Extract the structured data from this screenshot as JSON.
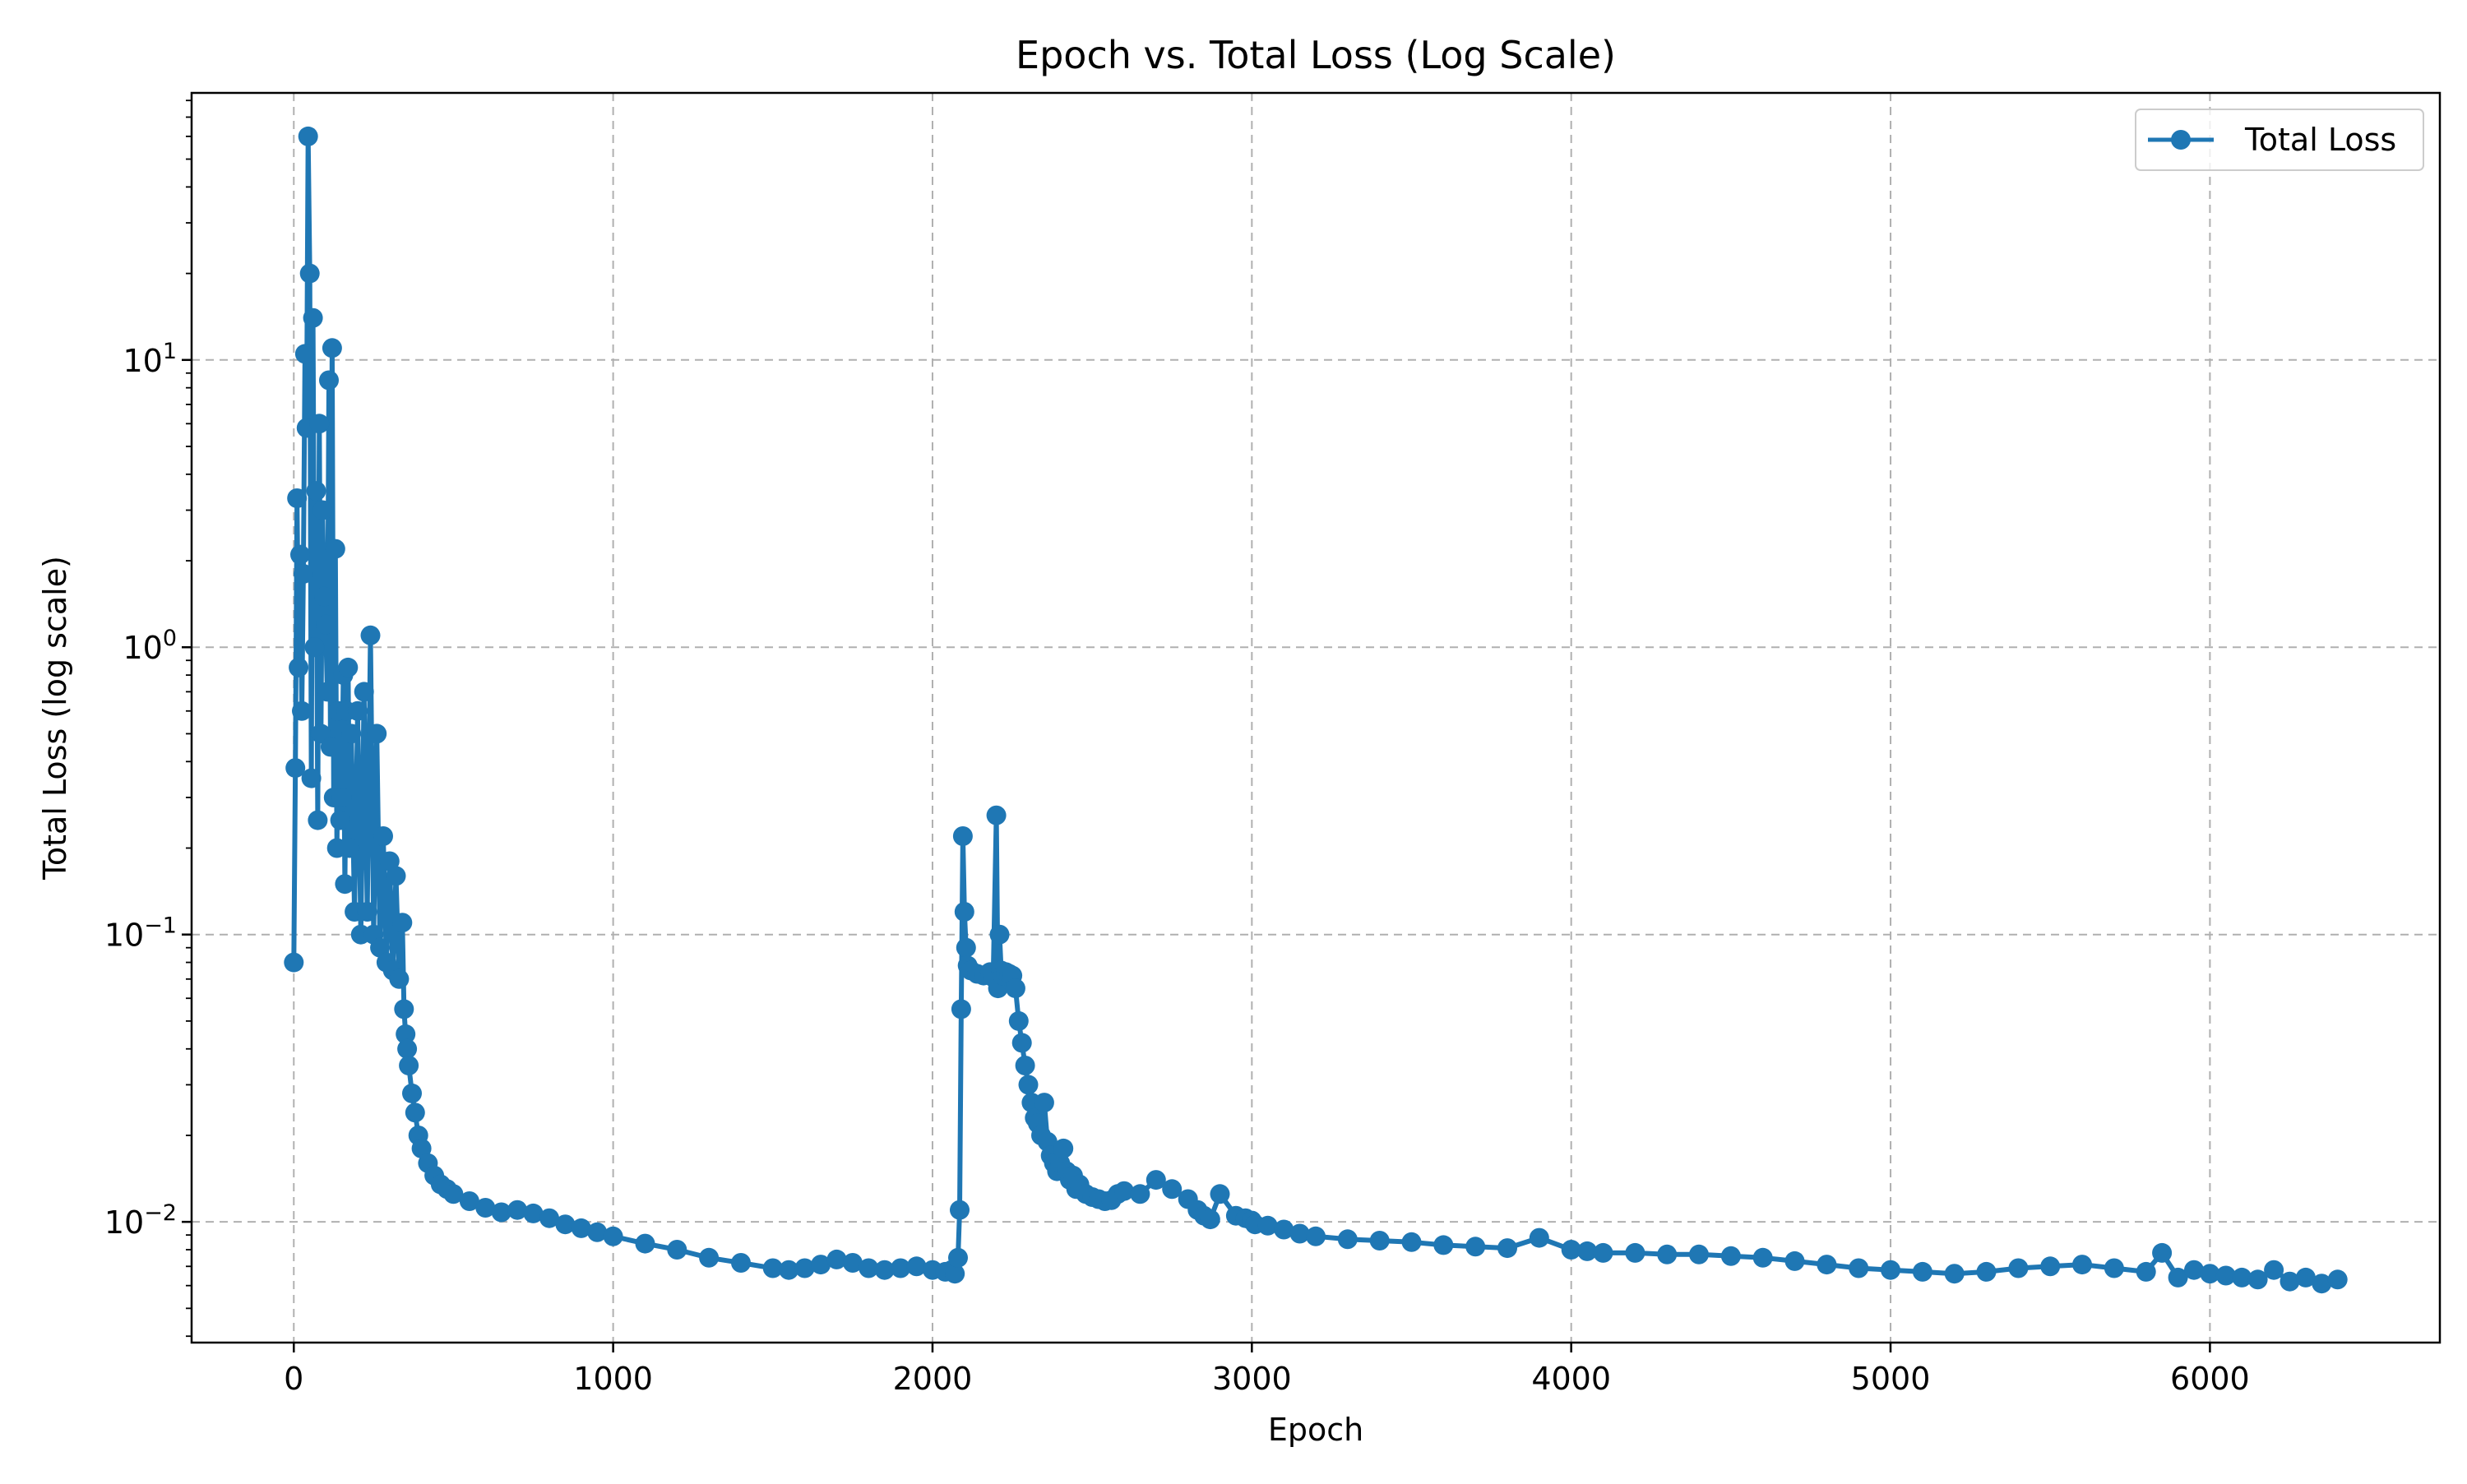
{
  "chart_data": {
    "type": "line",
    "title": "Epoch vs. Total Loss (Log Scale)",
    "xlabel": "Epoch",
    "ylabel": "Total Loss (log scale)",
    "xlim": [
      -320,
      6720
    ],
    "ylim": [
      0.0038,
      85
    ],
    "yscale": "log",
    "grid": true,
    "legend_position": "top-right",
    "x_ticks": [
      {
        "value": 0,
        "label": "0"
      },
      {
        "value": 1000,
        "label": "1000"
      },
      {
        "value": 2000,
        "label": "2000"
      },
      {
        "value": 3000,
        "label": "3000"
      },
      {
        "value": 4000,
        "label": "4000"
      },
      {
        "value": 5000,
        "label": "5000"
      },
      {
        "value": 6000,
        "label": "6000"
      }
    ],
    "y_ticks": [
      {
        "value": 0.01,
        "base": "10",
        "exp": "−2"
      },
      {
        "value": 0.1,
        "base": "10",
        "exp": "−1"
      },
      {
        "value": 1,
        "base": "10",
        "exp": "0"
      },
      {
        "value": 10,
        "base": "10",
        "exp": "1"
      }
    ],
    "series": [
      {
        "name": "Total Loss",
        "color": "#1f77b4",
        "marker": "circle",
        "x": [
          0,
          5,
          10,
          15,
          20,
          25,
          30,
          35,
          40,
          45,
          50,
          55,
          60,
          65,
          70,
          75,
          80,
          85,
          90,
          95,
          100,
          105,
          110,
          115,
          120,
          125,
          130,
          135,
          140,
          145,
          150,
          155,
          160,
          165,
          170,
          175,
          180,
          190,
          200,
          210,
          220,
          230,
          240,
          250,
          260,
          270,
          280,
          290,
          300,
          310,
          320,
          330,
          340,
          345,
          350,
          355,
          360,
          370,
          380,
          390,
          400,
          420,
          440,
          460,
          480,
          500,
          550,
          600,
          650,
          700,
          750,
          800,
          850,
          900,
          950,
          1000,
          1100,
          1200,
          1300,
          1400,
          1500,
          1550,
          1600,
          1650,
          1700,
          1750,
          1800,
          1850,
          1900,
          1950,
          2000,
          2040,
          2060,
          2070,
          2080,
          2085,
          2090,
          2095,
          2100,
          2105,
          2110,
          2120,
          2140,
          2160,
          2180,
          2190,
          2200,
          2205,
          2210,
          2215,
          2220,
          2230,
          2240,
          2250,
          2260,
          2270,
          2280,
          2290,
          2300,
          2310,
          2320,
          2330,
          2340,
          2350,
          2360,
          2370,
          2380,
          2390,
          2400,
          2410,
          2420,
          2430,
          2440,
          2450,
          2460,
          2480,
          2500,
          2520,
          2540,
          2560,
          2580,
          2600,
          2650,
          2700,
          2750,
          2800,
          2830,
          2850,
          2870,
          2900,
          2950,
          2980,
          3000,
          3010,
          3050,
          3100,
          3150,
          3200,
          3300,
          3400,
          3500,
          3600,
          3700,
          3800,
          3900,
          4000,
          4050,
          4100,
          4200,
          4300,
          4400,
          4500,
          4600,
          4700,
          4800,
          4900,
          5000,
          5100,
          5200,
          5300,
          5400,
          5500,
          5600,
          5700,
          5800,
          5850,
          5900,
          5950,
          6000,
          6050,
          6100,
          6150,
          6200,
          6250,
          6300,
          6350,
          6400
        ],
        "y": [
          0.08,
          0.38,
          3.3,
          0.85,
          2.1,
          0.6,
          1.8,
          10.5,
          5.8,
          60,
          20,
          0.35,
          14,
          1.0,
          3.5,
          0.25,
          6,
          0.5,
          3,
          1.5,
          1.2,
          0.7,
          8.5,
          0.45,
          11,
          0.3,
          2.2,
          0.2,
          0.6,
          0.25,
          0.3,
          0.8,
          0.15,
          0.6,
          0.85,
          0.2,
          0.5,
          0.12,
          0.6,
          0.1,
          0.7,
          0.12,
          1.1,
          0.1,
          0.5,
          0.09,
          0.22,
          0.08,
          0.18,
          0.075,
          0.16,
          0.07,
          0.11,
          0.055,
          0.045,
          0.04,
          0.035,
          0.028,
          0.024,
          0.02,
          0.018,
          0.016,
          0.0145,
          0.0135,
          0.013,
          0.0125,
          0.0118,
          0.0112,
          0.0108,
          0.011,
          0.0107,
          0.0103,
          0.0098,
          0.0095,
          0.0092,
          0.0089,
          0.0084,
          0.008,
          0.0075,
          0.0072,
          0.0069,
          0.0068,
          0.0069,
          0.0071,
          0.0074,
          0.0072,
          0.0069,
          0.0068,
          0.0069,
          0.007,
          0.0068,
          0.0067,
          0.0068,
          0.0066,
          0.0075,
          0.011,
          0.055,
          0.22,
          0.12,
          0.09,
          0.078,
          0.075,
          0.073,
          0.072,
          0.074,
          0.071,
          0.26,
          0.065,
          0.1,
          0.075,
          0.072,
          0.074,
          0.073,
          0.072,
          0.065,
          0.05,
          0.042,
          0.035,
          0.03,
          0.026,
          0.023,
          0.022,
          0.02,
          0.026,
          0.019,
          0.017,
          0.016,
          0.015,
          0.016,
          0.018,
          0.015,
          0.014,
          0.0145,
          0.013,
          0.0135,
          0.0125,
          0.0122,
          0.012,
          0.0118,
          0.0119,
          0.0125,
          0.0128,
          0.0125,
          0.014,
          0.013,
          0.012,
          0.011,
          0.0105,
          0.0102,
          0.0125,
          0.0105,
          0.0103,
          0.0101,
          0.0098,
          0.0097,
          0.0094,
          0.0091,
          0.0089,
          0.0087,
          0.0086,
          0.0085,
          0.0083,
          0.0082,
          0.0081,
          0.0088,
          0.008,
          0.0079,
          0.0078,
          0.0078,
          0.0077,
          0.0077,
          0.0076,
          0.0075,
          0.0073,
          0.0071,
          0.0069,
          0.0068,
          0.0067,
          0.0066,
          0.0067,
          0.0069,
          0.007,
          0.0071,
          0.0069,
          0.0067,
          0.0078,
          0.0064,
          0.0068,
          0.0066,
          0.0065,
          0.0064,
          0.0063,
          0.0068,
          0.0062,
          0.0064,
          0.0061,
          0.0063
        ]
      }
    ]
  }
}
